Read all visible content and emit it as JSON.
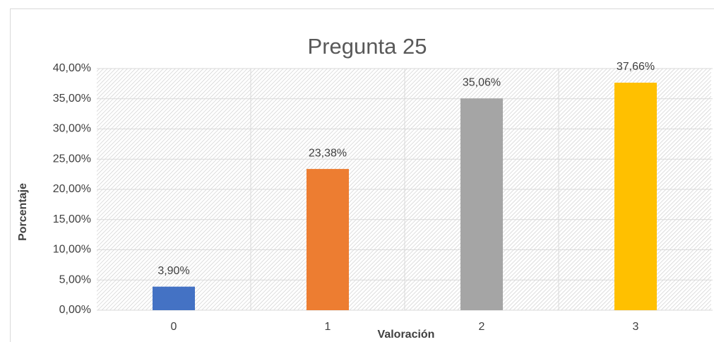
{
  "chart_data": {
    "type": "bar",
    "title": "Pregunta 25",
    "x_label": "Valoración",
    "y_label": "Porcentaje",
    "categories": [
      "0",
      "1",
      "2",
      "3"
    ],
    "values": [
      3.9,
      23.38,
      35.06,
      37.66
    ],
    "value_labels": [
      "3,90%",
      "23,38%",
      "35,06%",
      "37,66%"
    ],
    "colors": [
      "#4472c4",
      "#ed7d31",
      "#a5a5a5",
      "#ffc000"
    ],
    "ylim": [
      0,
      40
    ],
    "yticks": [
      {
        "value": 0,
        "label": "0,00%"
      },
      {
        "value": 5,
        "label": "5,00%"
      },
      {
        "value": 10,
        "label": "10,00%"
      },
      {
        "value": 15,
        "label": "15,00%"
      },
      {
        "value": 20,
        "label": "20,00%"
      },
      {
        "value": 25,
        "label": "25,00%"
      },
      {
        "value": 30,
        "label": "30,00%"
      },
      {
        "value": 35,
        "label": "35,00%"
      },
      {
        "value": 40,
        "label": "40,00%"
      }
    ],
    "grid": true
  }
}
